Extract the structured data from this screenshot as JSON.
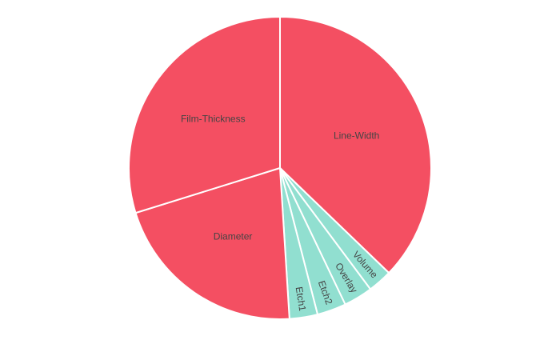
{
  "chart_data": {
    "type": "pie",
    "title": "",
    "slices": [
      {
        "label": "Line-Width",
        "value": 37.2,
        "color": "#f44f62"
      },
      {
        "label": "Volume",
        "value": 2.6,
        "color": "#91dfd0"
      },
      {
        "label": "Overlay",
        "value": 3.1,
        "color": "#91dfd0"
      },
      {
        "label": "Etch2",
        "value": 3.1,
        "color": "#91dfd0"
      },
      {
        "label": "Etch1",
        "value": 3.0,
        "color": "#91dfd0"
      },
      {
        "label": "Diameter",
        "value": 21.2,
        "color": "#f44f62"
      },
      {
        "label": "Film-Thickness",
        "value": 29.8,
        "color": "#f44f62"
      }
    ],
    "legend": "none",
    "slice_border_color": "#ffffff"
  }
}
